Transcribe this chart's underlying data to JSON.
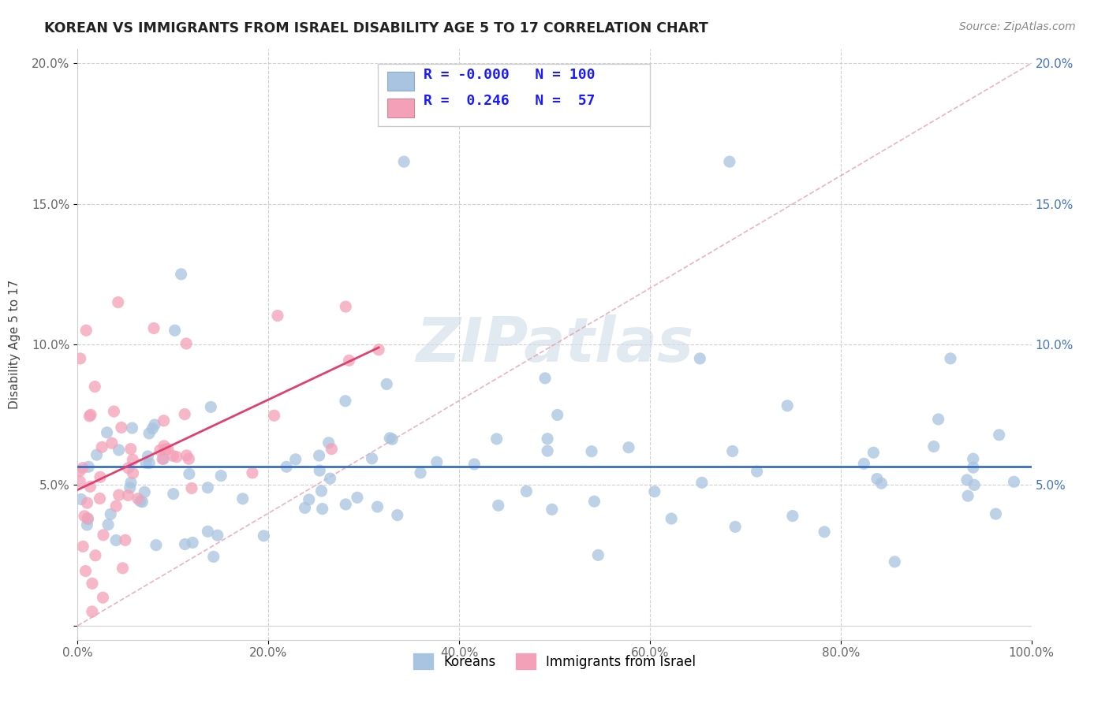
{
  "title": "KOREAN VS IMMIGRANTS FROM ISRAEL DISABILITY AGE 5 TO 17 CORRELATION CHART",
  "source": "Source: ZipAtlas.com",
  "ylabel": "Disability Age 5 to 17",
  "r1": "-0.000",
  "n1": "100",
  "r2": "0.246",
  "n2": "57",
  "color1": "#a8c4e0",
  "color2": "#f4a0b8",
  "trendline1_color": "#3a6fbd",
  "trendline2_color": "#e04070",
  "diag_color": "#e8a0b0",
  "watermark_color": "#d0dce8",
  "legend_label1": "Koreans",
  "legend_label2": "Immigrants from Israel",
  "xlim": [
    0.0,
    1.0
  ],
  "ylim": [
    -0.005,
    0.205
  ],
  "xtick_vals": [
    0.0,
    0.2,
    0.4,
    0.6,
    0.8,
    1.0
  ],
  "xtick_labels": [
    "0.0%",
    "20.0%",
    "40.0%",
    "60.0%",
    "80.0%",
    "100.0%"
  ],
  "ytick_vals": [
    0.0,
    0.05,
    0.1,
    0.15,
    0.2
  ],
  "ytick_labels_left": [
    "",
    "5.0%",
    "10.0%",
    "15.0%",
    "20.0%"
  ],
  "ytick_labels_right": [
    "",
    "5.0%",
    "10.0%",
    "15.0%",
    "20.0%"
  ]
}
